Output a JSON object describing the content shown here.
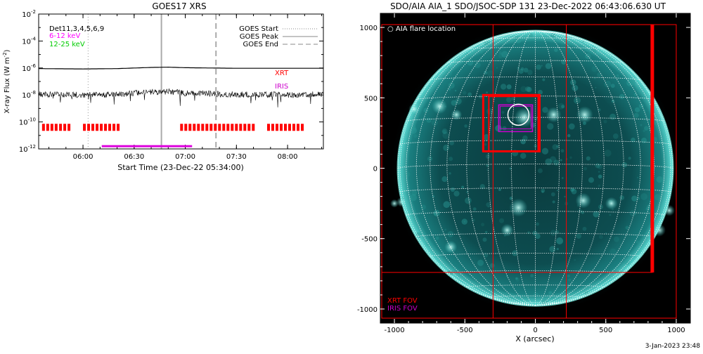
{
  "chart_data": [
    {
      "type": "line",
      "title": "GOES17 XRS",
      "xlabel": "Start Time (23-Dec-22 05:34:00)",
      "ylabel": "X-ray Flux (W m^-2)",
      "ylabel_parts": {
        "main": "X-ray Flux (W m",
        "sup": "-2",
        "tail": ")"
      },
      "y_scale": "log",
      "xlim": [
        "05:34",
        "08:21"
      ],
      "ylim": [
        1e-12,
        0.01
      ],
      "x_ticks": [
        "06:00",
        "06:30",
        "07:00",
        "07:30",
        "08:00"
      ],
      "y_ticks": [
        {
          "v": -12,
          "label": "10",
          "exp": "-12"
        },
        {
          "v": -10,
          "label": "10",
          "exp": "-10"
        },
        {
          "v": -8,
          "label": "10",
          "exp": "-8"
        },
        {
          "v": -6,
          "label": "10",
          "exp": "-6"
        },
        {
          "v": -4,
          "label": "10",
          "exp": "-4"
        },
        {
          "v": -2,
          "label": "10",
          "exp": "-2"
        }
      ],
      "series": [
        {
          "name": "6-12 keV",
          "color": "#ff00ff",
          "x": [
            "05:34",
            "06:00",
            "06:20",
            "06:40",
            "06:50",
            "07:00",
            "07:30",
            "08:00",
            "08:21"
          ],
          "y": [
            9e-07,
            8.5e-07,
            9e-07,
            1.1e-06,
            1.15e-06,
            1.05e-06,
            9.5e-07,
            9.5e-07,
            9.5e-07
          ]
        },
        {
          "name": "12-25 keV",
          "color": "#00cc00",
          "x": [
            "05:34",
            "06:00",
            "06:20",
            "06:40",
            "06:50",
            "07:00",
            "07:30",
            "08:00",
            "08:21"
          ],
          "y": [
            1.1e-08,
            1e-08,
            1.1e-08,
            1.6e-08,
            1.8e-08,
            1.4e-08,
            1.1e-08,
            1e-08,
            1.1e-08
          ]
        }
      ],
      "legend_left": {
        "dets": "Det11,3,4,5,6,9",
        "low": "6-12 keV",
        "high": "12-25 keV",
        "low_color": "#ff00ff",
        "high_color": "#00cc00"
      },
      "legend_right": [
        "GOES Start",
        "GOES Peak",
        "GOES End"
      ],
      "vlines": {
        "start": "06:03",
        "peak": "06:46",
        "end": "07:18"
      },
      "labels": {
        "xrt": "XRT",
        "iris": "IRIS",
        "xrt_color": "#ff0000",
        "iris_color": "#cc00cc"
      },
      "xrt_segments": [
        [
          "05:36",
          "05:44"
        ],
        [
          "05:46",
          "05:52"
        ],
        [
          "06:00",
          "06:22"
        ],
        [
          "06:57",
          "07:40"
        ],
        [
          "07:48",
          "08:10"
        ]
      ],
      "iris_segments": [
        [
          "06:11",
          "07:04"
        ]
      ]
    },
    {
      "type": "image",
      "title": "SDO/AIA AIA_1 SDO/JSOC-SDP 131 23-Dec-2022 06:43:06.630 UT",
      "xlabel": "X (arcsec)",
      "xlim": [
        -1100,
        1100
      ],
      "ylim": [
        -1100,
        1100
      ],
      "x_ticks": [
        -1000,
        -500,
        0,
        500,
        1000
      ],
      "y_ticks": [
        -1000,
        -500,
        0,
        500,
        1000
      ],
      "flare_label": "AIA flare location",
      "flare_location": {
        "x": -120,
        "y": 380
      },
      "xrt_fov_label": "XRT FOV",
      "iris_fov_label": "IRIS FOV",
      "xrt_color": "#ff0000",
      "iris_color": "#cc00cc",
      "solar_radius": 975
    }
  ],
  "footer": {
    "timestamp": "3-Jan-2023 23:48"
  }
}
